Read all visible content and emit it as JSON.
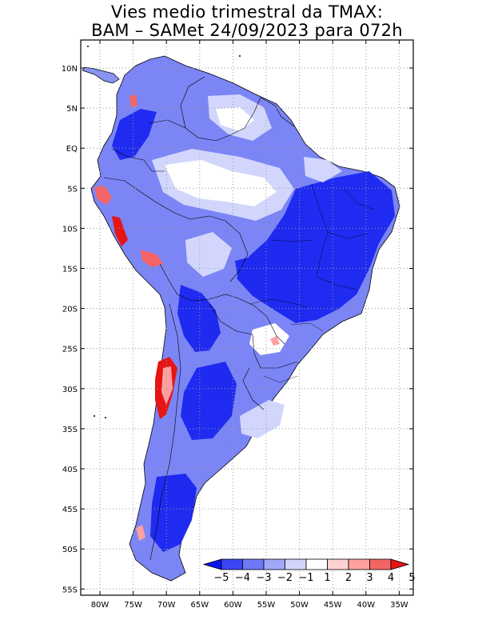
{
  "title": {
    "line1": "Vies medio trimestral da TMAX:",
    "line2": "BAM – SAMet 24/09/2023  para 072h"
  },
  "map": {
    "y_axis_labels": [
      "10N",
      "5N",
      "EQ",
      "5S",
      "10S",
      "15S",
      "20S",
      "25S",
      "30S",
      "35S",
      "40S",
      "45S",
      "50S",
      "55S"
    ],
    "x_axis_labels": [
      "80W",
      "75W",
      "70W",
      "65W",
      "60W",
      "55W",
      "50W",
      "45W",
      "40W",
      "35W"
    ]
  },
  "colorbar": {
    "labels": [
      "−5",
      "−4",
      "−3",
      "−2",
      "−1",
      "1",
      "2",
      "3",
      "4",
      "5"
    ],
    "colors": [
      "#0a14f0",
      "#3c46f5",
      "#6e78f8",
      "#a0a8fa",
      "#d2d6fd",
      "#ffffff",
      "#ffd2d2",
      "#ffa0a0",
      "#f56464",
      "#e61414"
    ]
  }
}
